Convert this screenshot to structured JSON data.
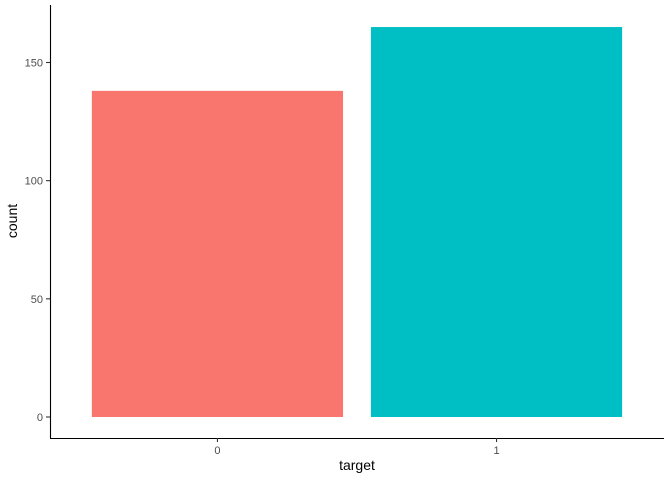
{
  "chart_data": {
    "type": "bar",
    "categories": [
      "0",
      "1"
    ],
    "values": [
      138,
      165
    ],
    "colors": [
      "#F8766D",
      "#00BFC4"
    ],
    "title": "",
    "xlabel": "target",
    "ylabel": "count",
    "ylim": [
      0,
      173.25
    ],
    "yticks": [
      0,
      50,
      100,
      150
    ],
    "ytick_labels": [
      "0",
      "50",
      "100",
      "150"
    ],
    "grid": false,
    "legend": "none"
  }
}
